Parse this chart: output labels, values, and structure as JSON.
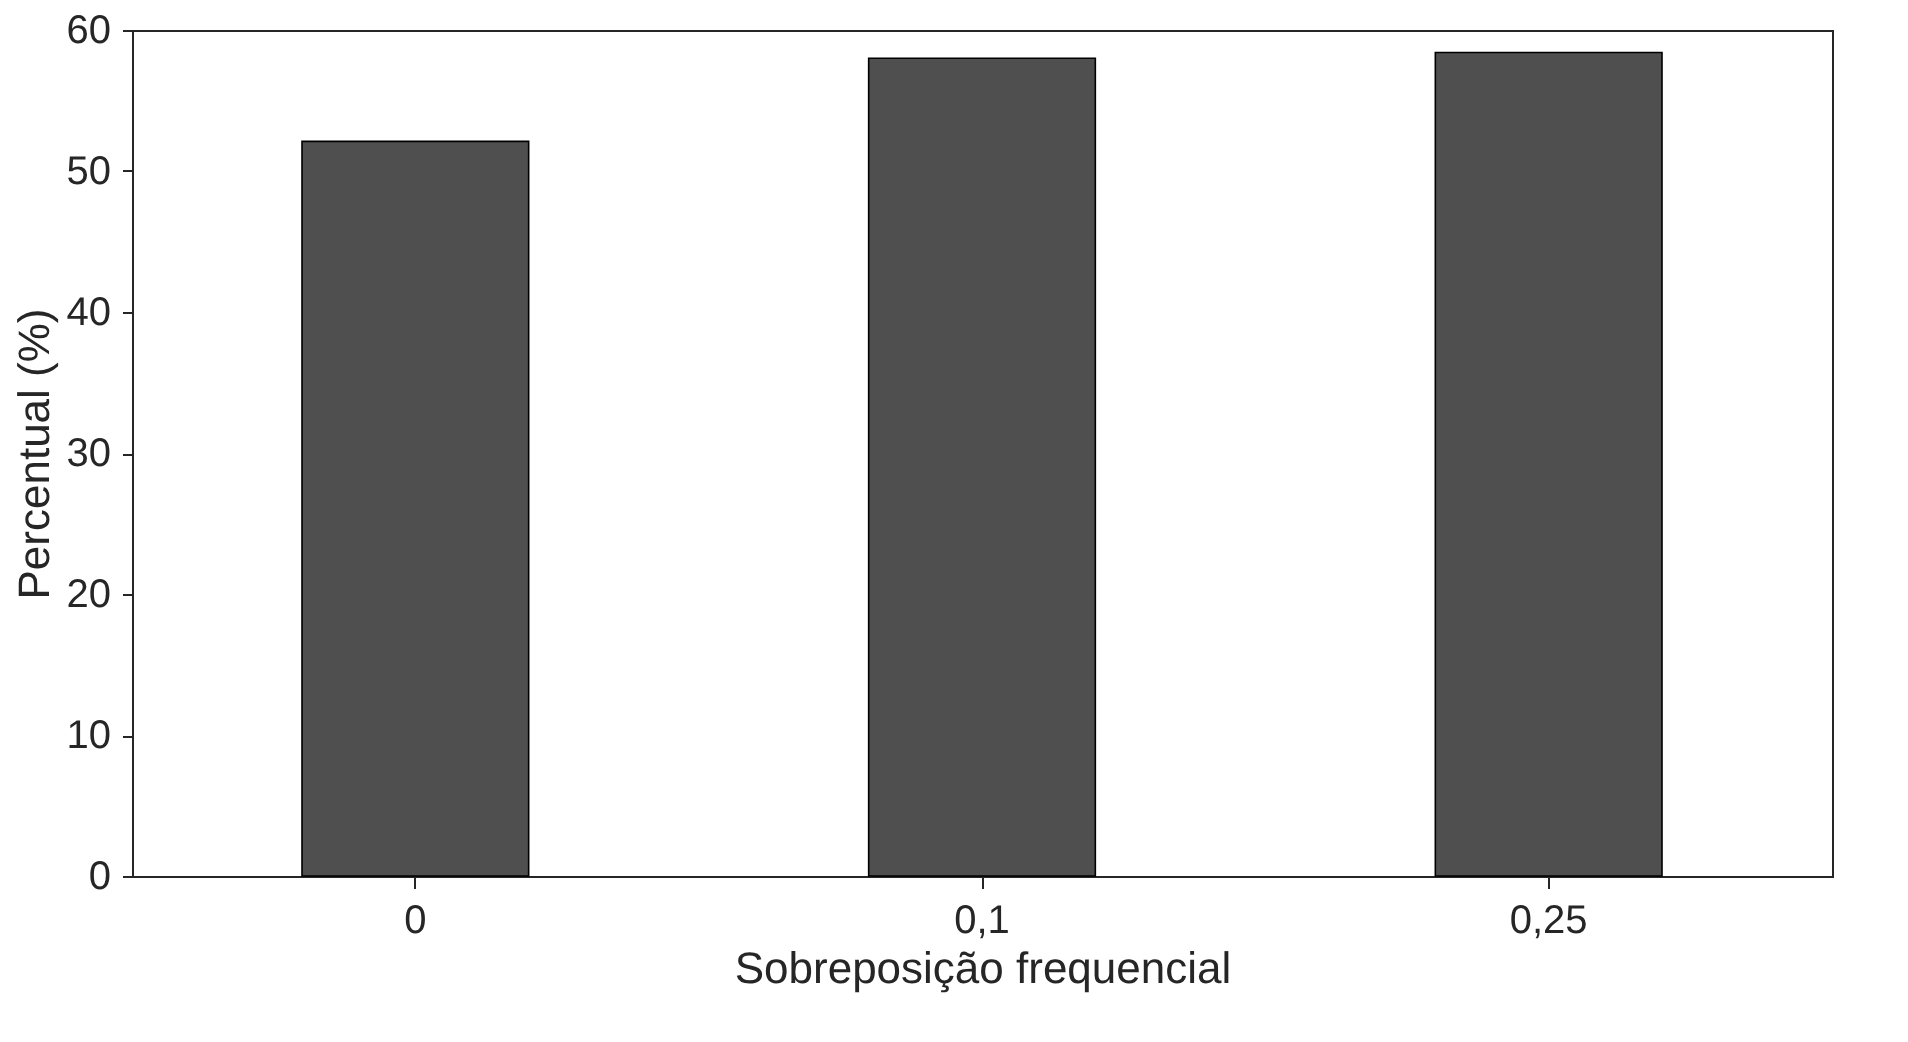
{
  "chart_data": {
    "type": "bar",
    "xlabel": "Sobreposição frequencial",
    "ylabel": "Percentual (%)",
    "categories": [
      "0",
      "0,1",
      "0,25"
    ],
    "series": [
      {
        "color": "#4f4f4f",
        "values": [
          52.1,
          58.0,
          58.4
        ]
      }
    ],
    "ylim": [
      0,
      60
    ],
    "yticks": [
      0,
      10,
      20,
      30,
      40,
      50,
      60
    ],
    "grid": false,
    "legend": false
  }
}
